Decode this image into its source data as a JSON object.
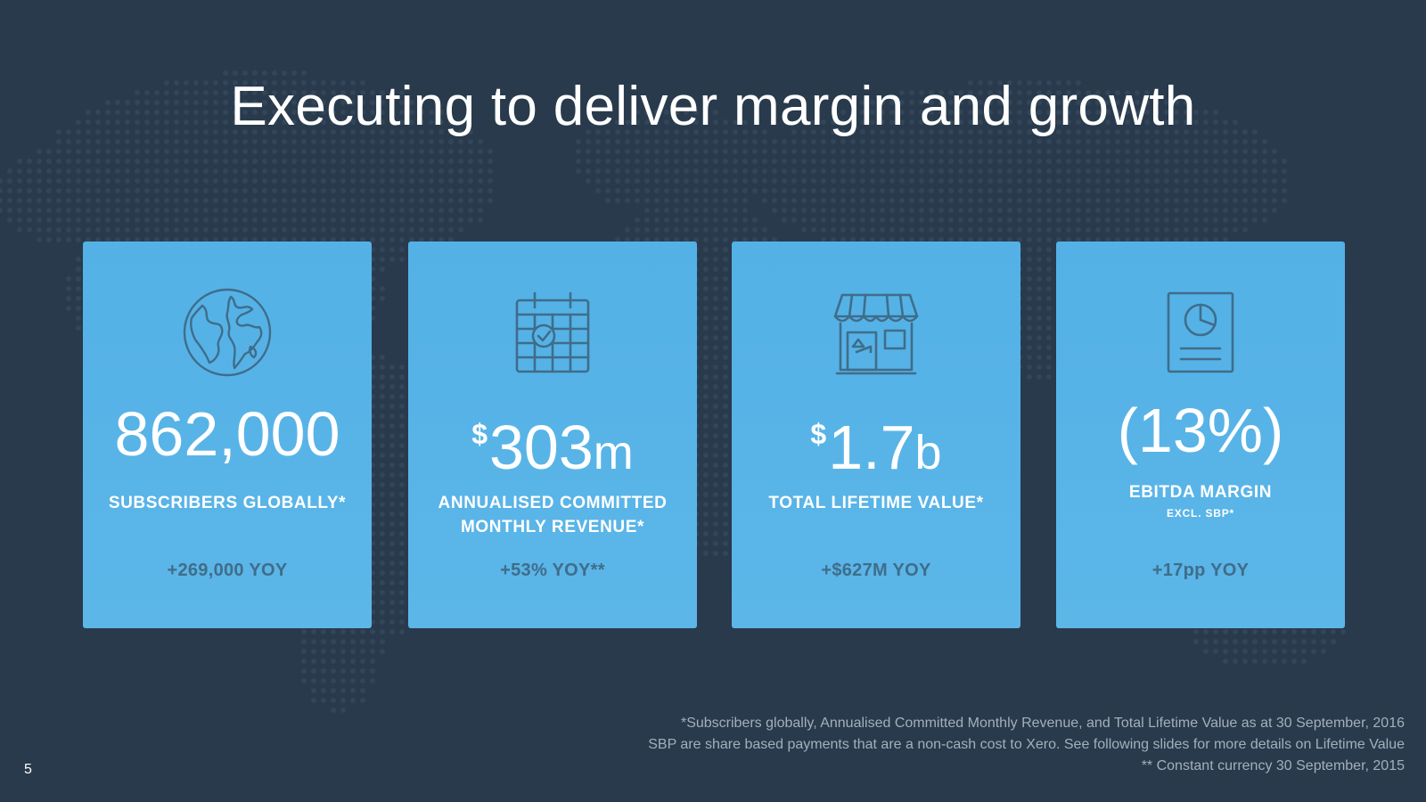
{
  "slide": {
    "title": "Executing to deliver margin and growth",
    "page_number": "5",
    "background_color": "#283a4c",
    "card_color": "#55b2e6",
    "growth_text_color": "#3f6d8a"
  },
  "cards": [
    {
      "icon": "globe-icon",
      "value": "862,000",
      "label": "SUBSCRIBERS GLOBALLY*",
      "growth": "+269,000 YOY"
    },
    {
      "icon": "calendar-icon",
      "value_prefix": "$",
      "value": "303",
      "value_suffix": "m",
      "label": "ANNUALISED COMMITTED MONTHLY REVENUE*",
      "growth": "+53% YOY**"
    },
    {
      "icon": "storefront-icon",
      "value_prefix": "$",
      "value": "1.7",
      "value_suffix": "b",
      "label": "TOTAL LIFETIME VALUE*",
      "growth": "+$627M YOY"
    },
    {
      "icon": "report-icon",
      "value": "(13%)",
      "label": "EBITDA MARGIN",
      "sublabel": "EXCL. SBP*",
      "growth": "+17pp YOY"
    }
  ],
  "footnotes": [
    "*Subscribers globally, Annualised Committed Monthly Revenue, and Total Lifetime Value as at 30 September, 2016",
    "SBP are share based payments that are a non-cash cost to Xero. See following slides for more details on Lifetime Value",
    "** Constant currency 30 September, 2015"
  ]
}
